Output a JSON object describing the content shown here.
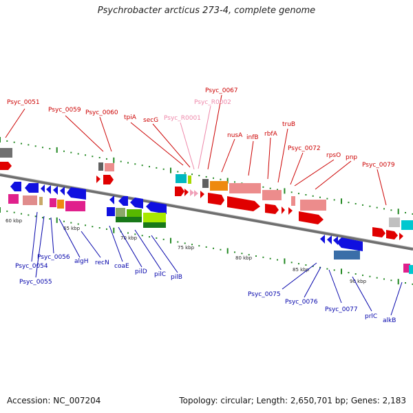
{
  "title": "Psychrobacter arcticus 273-4, complete genome",
  "footer": {
    "accession": "Accession: NC_007204",
    "summary": "Topology: circular; Length: 2,650,701 bp; Genes: 2,183"
  },
  "colors": {
    "backbone": "#777777",
    "forward_label": "#cc0000",
    "rna_label": "#ee88aa",
    "reverse_label": "#0000aa",
    "tick": "#228822"
  },
  "kbp_labels": [
    "60 kbp",
    "65 kbp",
    "70 kbp",
    "75 kbp",
    "80 kbp",
    "85 kbp",
    "90 kbp"
  ],
  "top_labels": [
    {
      "text": "Psyc_0051",
      "kind": "forward"
    },
    {
      "text": "Psyc_0059",
      "kind": "forward"
    },
    {
      "text": "Psyc_0060",
      "kind": "forward"
    },
    {
      "text": "tpiA",
      "kind": "forward"
    },
    {
      "text": "secG",
      "kind": "forward"
    },
    {
      "text": "Psyc_R0001",
      "kind": "rna"
    },
    {
      "text": "Psyc_R0002",
      "kind": "rna"
    },
    {
      "text": "Psyc_0067",
      "kind": "forward"
    },
    {
      "text": "nusA",
      "kind": "forward"
    },
    {
      "text": "infB",
      "kind": "forward"
    },
    {
      "text": "rbfA",
      "kind": "forward"
    },
    {
      "text": "truB",
      "kind": "forward"
    },
    {
      "text": "Psyc_0072",
      "kind": "forward"
    },
    {
      "text": "rpsO",
      "kind": "forward"
    },
    {
      "text": "pnp",
      "kind": "forward"
    },
    {
      "text": "Psyc_0079",
      "kind": "forward"
    }
  ],
  "bottom_labels": [
    {
      "text": "Psyc_0054"
    },
    {
      "text": "Psyc_0055"
    },
    {
      "text": "Psyc_0056"
    },
    {
      "text": "algH"
    },
    {
      "text": "recN"
    },
    {
      "text": "coaE"
    },
    {
      "text": "pilD"
    },
    {
      "text": "pilC"
    },
    {
      "text": "pilB"
    },
    {
      "text": "Psyc_0075"
    },
    {
      "text": "Psyc_0076"
    },
    {
      "text": "Psyc_0077"
    },
    {
      "text": "prlC"
    },
    {
      "text": "alkB"
    }
  ]
}
